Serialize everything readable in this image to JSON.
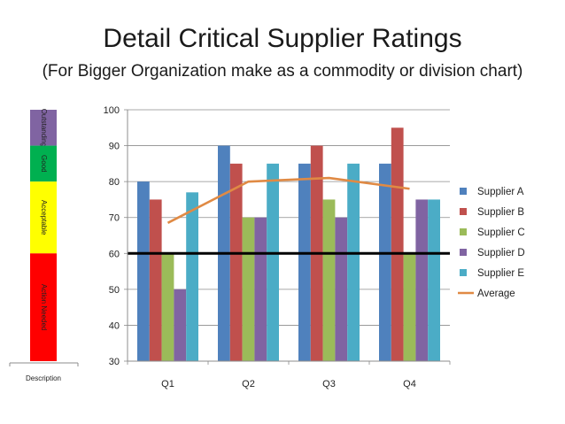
{
  "title": "Detail Critical Supplier Ratings",
  "subtitle": "(For Bigger Organization make as a commodity or division chart)",
  "scale": {
    "description_label": "Description",
    "bands": [
      {
        "label": "Outstanding",
        "from": 90,
        "to": 100,
        "color": "#8064a2"
      },
      {
        "label": "Good",
        "from": 80,
        "to": 90,
        "color": "#00b050"
      },
      {
        "label": "Acceptable",
        "from": 60,
        "to": 80,
        "color": "#ffff00"
      },
      {
        "label": "Action Needed",
        "from": 30,
        "to": 60,
        "color": "#ff0000"
      }
    ]
  },
  "chart_data": {
    "type": "bar",
    "categories": [
      "Q1",
      "Q2",
      "Q3",
      "Q4"
    ],
    "series": [
      {
        "name": "Supplier A",
        "color": "#4f81bd",
        "values": [
          80,
          90,
          85,
          85
        ]
      },
      {
        "name": "Supplier B",
        "color": "#c0504d",
        "values": [
          75,
          85,
          90,
          95
        ]
      },
      {
        "name": "Supplier C",
        "color": "#9bbb59",
        "values": [
          60,
          70,
          75,
          60
        ]
      },
      {
        "name": "Supplier D",
        "color": "#8064a2",
        "values": [
          50,
          70,
          70,
          75
        ]
      },
      {
        "name": "Supplier E",
        "color": "#4bacc6",
        "values": [
          77,
          85,
          85,
          75
        ]
      }
    ],
    "line": {
      "name": "Average",
      "color": "#e08a44",
      "values": [
        68.5,
        80,
        81,
        78
      ]
    },
    "threshold": {
      "value": 60,
      "color": "#000000"
    },
    "ylim": [
      30,
      100
    ],
    "yticks": [
      30,
      40,
      50,
      60,
      70,
      80,
      90,
      100
    ],
    "grid": true,
    "legend": "right"
  }
}
